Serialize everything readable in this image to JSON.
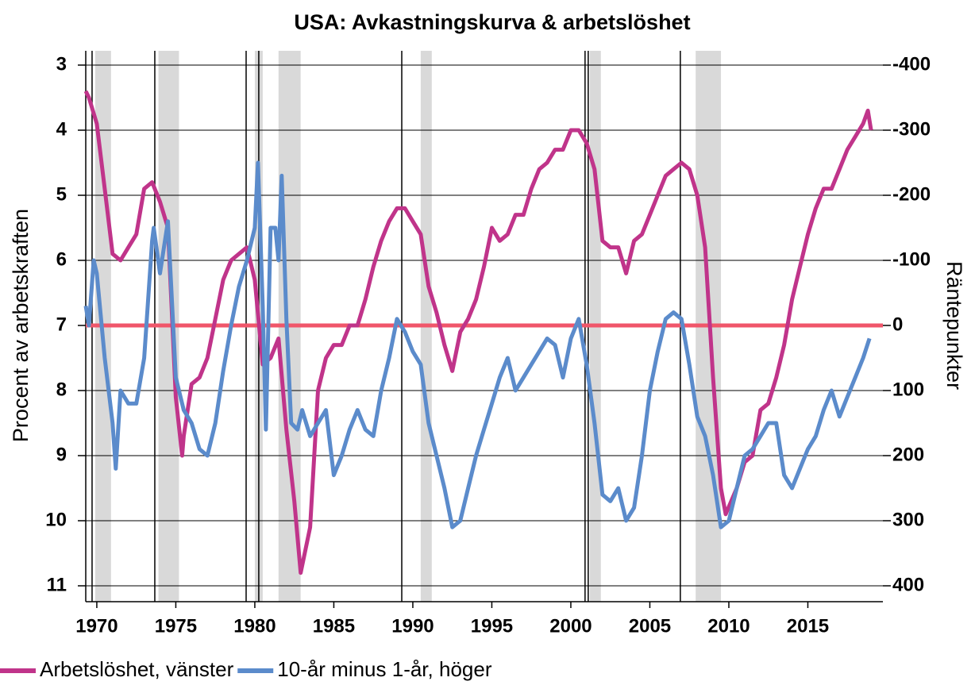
{
  "chart_data": {
    "type": "line",
    "title": "USA: Avkastningskurva & arbetslöshet",
    "ylabel": "Procent av arbetskraften",
    "y2label": "Räntepunkter",
    "xlim": [
      1969.3,
      2019.75
    ],
    "xticks": [
      1970,
      1975,
      1980,
      1985,
      1990,
      1995,
      2000,
      2005,
      2010,
      2015
    ],
    "ylim": [
      11,
      3
    ],
    "yticks": [
      3,
      4,
      5,
      6,
      7,
      8,
      9,
      10,
      11
    ],
    "y2lim": [
      400,
      -400
    ],
    "y2ticks": [
      -400,
      -300,
      -200,
      -100,
      0,
      100,
      200,
      300,
      400
    ],
    "grid": true,
    "legend": "bottom-left",
    "recessions": [
      [
        1969.9,
        1970.9
      ],
      [
        1973.9,
        1975.2
      ],
      [
        1980.0,
        1980.5
      ],
      [
        1981.5,
        1982.9
      ],
      [
        1990.5,
        1991.2
      ],
      [
        2001.2,
        2001.9
      ],
      [
        2007.9,
        2009.5
      ]
    ],
    "inversions": [
      1969.7,
      1973.67,
      1979.45,
      1980.25,
      1989.3,
      2000.9,
      2001.1,
      2006.93
    ],
    "reference_line": {
      "value": 0,
      "axis": "y2",
      "color": "#f0566a"
    },
    "series": [
      {
        "name": "Arbetslöshet, vänster",
        "color": "#c0348a",
        "x": [
          1969.3,
          1969.5,
          1970.0,
          1970.5,
          1971.0,
          1971.5,
          1972.0,
          1972.5,
          1973.0,
          1973.5,
          1974.0,
          1974.5,
          1975.0,
          1975.4,
          1975.5,
          1976.0,
          1976.5,
          1977.0,
          1977.5,
          1978.0,
          1978.5,
          1979.0,
          1979.5,
          1980.0,
          1980.5,
          1981.0,
          1981.5,
          1982.0,
          1982.5,
          1982.9,
          1983.5,
          1984.0,
          1984.5,
          1985.0,
          1985.5,
          1986.0,
          1986.5,
          1987.0,
          1987.5,
          1988.0,
          1988.5,
          1989.0,
          1989.5,
          1990.0,
          1990.5,
          1991.0,
          1991.5,
          1992.0,
          1992.5,
          1993.0,
          1993.5,
          1994.0,
          1994.5,
          1995.0,
          1995.5,
          1996.0,
          1996.5,
          1997.0,
          1997.5,
          1998.0,
          1998.5,
          1999.0,
          1999.5,
          2000.0,
          2000.5,
          2001.0,
          2001.5,
          2002.0,
          2002.5,
          2003.0,
          2003.5,
          2004.0,
          2004.5,
          2005.0,
          2005.5,
          2006.0,
          2006.5,
          2007.0,
          2007.5,
          2008.0,
          2008.5,
          2009.0,
          2009.5,
          2009.8,
          2010.5,
          2011.0,
          2011.5,
          2012.0,
          2012.5,
          2013.0,
          2013.5,
          2014.0,
          2014.5,
          2015.0,
          2015.5,
          2016.0,
          2016.5,
          2017.0,
          2017.5,
          2018.0,
          2018.5,
          2018.8,
          2019.0
        ],
        "values": [
          3.4,
          3.5,
          3.9,
          4.9,
          5.9,
          6.0,
          5.8,
          5.6,
          4.9,
          4.8,
          5.1,
          5.5,
          8.1,
          9.0,
          8.7,
          7.9,
          7.8,
          7.5,
          6.9,
          6.3,
          6.0,
          5.9,
          5.8,
          6.3,
          7.6,
          7.5,
          7.2,
          8.6,
          9.7,
          10.8,
          10.1,
          8.0,
          7.5,
          7.3,
          7.3,
          7.0,
          7.0,
          6.6,
          6.1,
          5.7,
          5.4,
          5.2,
          5.2,
          5.4,
          5.6,
          6.4,
          6.8,
          7.3,
          7.7,
          7.1,
          6.9,
          6.6,
          6.1,
          5.5,
          5.7,
          5.6,
          5.3,
          5.3,
          4.9,
          4.6,
          4.5,
          4.3,
          4.3,
          4.0,
          4.0,
          4.2,
          4.6,
          5.7,
          5.8,
          5.8,
          6.2,
          5.7,
          5.6,
          5.3,
          5.0,
          4.7,
          4.6,
          4.5,
          4.6,
          5.0,
          5.8,
          7.8,
          9.5,
          9.9,
          9.5,
          9.1,
          9.0,
          8.3,
          8.2,
          7.8,
          7.3,
          6.6,
          6.1,
          5.6,
          5.2,
          4.9,
          4.9,
          4.6,
          4.3,
          4.1,
          3.9,
          3.7,
          4.0
        ]
      },
      {
        "name": "10-år minus 1-år, höger",
        "color": "#5b8bcb",
        "axis": "y2",
        "x": [
          1969.3,
          1969.5,
          1969.8,
          1970.0,
          1970.5,
          1971.0,
          1971.2,
          1971.5,
          1972.0,
          1972.5,
          1973.0,
          1973.5,
          1973.6,
          1974.0,
          1974.5,
          1975.0,
          1975.5,
          1976.0,
          1976.5,
          1977.0,
          1977.5,
          1978.0,
          1978.5,
          1979.0,
          1979.5,
          1980.0,
          1980.2,
          1980.5,
          1980.7,
          1981.0,
          1981.3,
          1981.5,
          1981.7,
          1982.0,
          1982.3,
          1982.7,
          1983.0,
          1983.5,
          1984.0,
          1984.5,
          1985.0,
          1985.5,
          1986.0,
          1986.5,
          1987.0,
          1987.5,
          1988.0,
          1988.5,
          1989.0,
          1989.5,
          1990.0,
          1990.5,
          1991.0,
          1991.5,
          1992.0,
          1992.5,
          1993.0,
          1993.5,
          1994.0,
          1994.5,
          1995.0,
          1995.5,
          1996.0,
          1996.5,
          1997.0,
          1997.5,
          1998.0,
          1998.5,
          1999.0,
          1999.5,
          2000.0,
          2000.5,
          2001.0,
          2001.5,
          2002.0,
          2002.5,
          2003.0,
          2003.5,
          2004.0,
          2004.5,
          2005.0,
          2005.5,
          2006.0,
          2006.5,
          2007.0,
          2007.5,
          2008.0,
          2008.5,
          2009.0,
          2009.5,
          2010.0,
          2010.5,
          2011.0,
          2011.5,
          2012.0,
          2012.5,
          2013.0,
          2013.5,
          2014.0,
          2014.5,
          2015.0,
          2015.5,
          2016.0,
          2016.5,
          2017.0,
          2017.5,
          2018.0,
          2018.5,
          2018.9
        ],
        "values": [
          -30,
          0,
          -100,
          -80,
          50,
          150,
          220,
          100,
          120,
          120,
          50,
          -130,
          -150,
          -80,
          -160,
          80,
          130,
          150,
          190,
          200,
          150,
          70,
          0,
          -60,
          -100,
          -150,
          -250,
          -30,
          160,
          -150,
          -150,
          -100,
          -230,
          -10,
          150,
          160,
          130,
          170,
          150,
          130,
          230,
          200,
          160,
          130,
          160,
          170,
          100,
          50,
          -10,
          10,
          40,
          60,
          150,
          200,
          250,
          310,
          300,
          250,
          200,
          160,
          120,
          80,
          50,
          100,
          80,
          60,
          40,
          20,
          30,
          80,
          20,
          -10,
          60,
          150,
          260,
          270,
          250,
          300,
          280,
          200,
          100,
          40,
          -10,
          -20,
          -10,
          60,
          140,
          170,
          230,
          310,
          300,
          250,
          200,
          190,
          170,
          150,
          150,
          230,
          250,
          220,
          190,
          170,
          130,
          100,
          140,
          110,
          80,
          50,
          20
        ]
      }
    ]
  }
}
